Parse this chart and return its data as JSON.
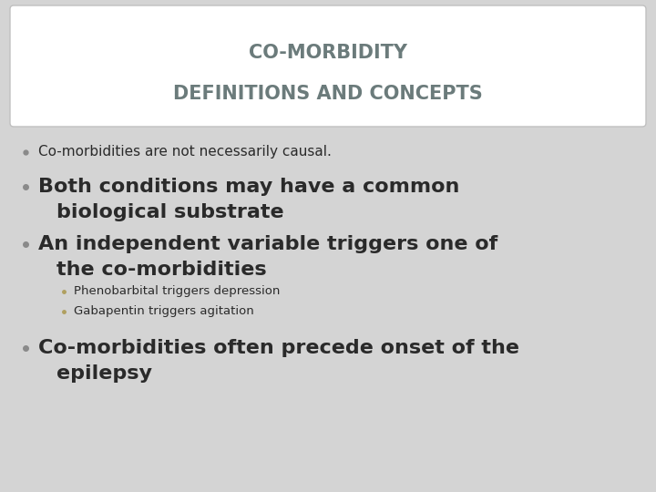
{
  "title_line1": "CO-MORBIDITY",
  "title_line2": "DEFINITIONS AND CONCEPTS",
  "title_color": "#6b7b7b",
  "title_bg_color": "#ffffff",
  "slide_bg_color": "#d4d4d4",
  "bullet_color": "#8a8a8a",
  "bullet_small_color": "#b0a060",
  "text_color": "#2a2a2a",
  "bullet1": "Co-morbidities are not necessarily causal.",
  "bullet2_line1": "Both conditions may have a common",
  "bullet2_line2": "biological substrate",
  "bullet3_line1": "An independent variable triggers one of",
  "bullet3_line2": "the co-morbidities",
  "sub_bullet1": "Phenobarbital triggers depression",
  "sub_bullet2": "Gabapentin triggers agitation",
  "bullet4_line1": "Co-morbidities often precede onset of the",
  "bullet4_line2": "epilepsy",
  "title_fontsize": 15,
  "large_fontsize": 16,
  "small_fontsize": 11,
  "sub_fontsize": 9.5
}
